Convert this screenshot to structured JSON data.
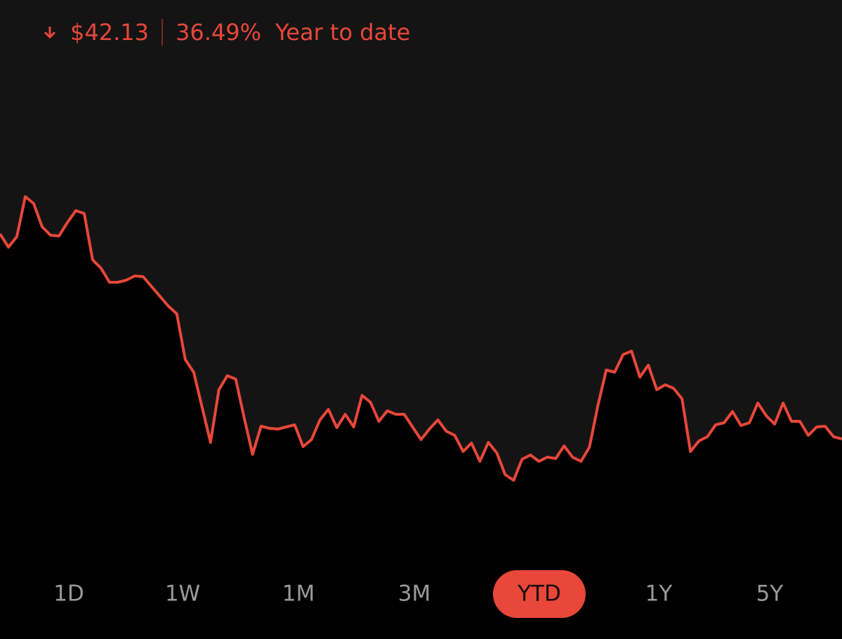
{
  "header": {
    "change": "$42.13",
    "percent": "36.49%",
    "period": "Year to date"
  },
  "chart_data": {
    "type": "line",
    "color": "#e8473a",
    "ylim": [
      0,
      800
    ],
    "values": [
      467,
      448,
      463,
      520,
      510,
      477,
      465,
      464,
      483,
      500,
      496,
      430,
      418,
      398,
      398,
      401,
      407,
      406,
      392,
      378,
      364,
      353,
      288,
      270,
      220,
      170,
      245,
      265,
      260,
      205,
      153,
      193,
      190,
      189,
      192,
      195,
      164,
      174,
      202,
      217,
      191,
      210,
      192,
      237,
      227,
      200,
      215,
      210,
      210,
      192,
      174,
      189,
      202,
      186,
      180,
      157,
      169,
      143,
      170,
      155,
      124,
      116,
      146,
      152,
      143,
      149,
      147,
      165,
      149,
      143,
      163,
      222,
      273,
      270,
      295,
      300,
      263,
      280,
      245,
      252,
      247,
      232,
      157,
      172,
      178,
      195,
      198,
      214,
      194,
      198,
      226,
      208,
      196,
      226,
      200,
      200,
      180,
      192,
      193,
      178,
      175
    ]
  },
  "ranges": {
    "items": [
      "1D",
      "1W",
      "1M",
      "3M",
      "YTD",
      "1Y",
      "5Y"
    ],
    "selected": 4
  }
}
